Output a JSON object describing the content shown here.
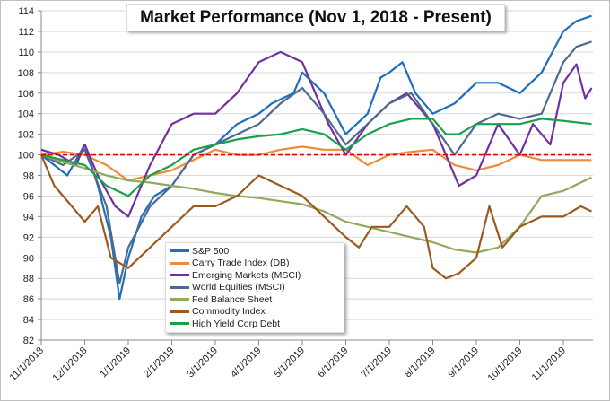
{
  "chart_data": {
    "type": "line",
    "title": "Market Performance (Nov 1, 2018 - Present)",
    "xlabel": "",
    "ylabel": "",
    "ylim": [
      82,
      114
    ],
    "yticks": [
      82,
      84,
      86,
      88,
      90,
      92,
      94,
      96,
      98,
      100,
      102,
      104,
      106,
      108,
      110,
      112,
      114
    ],
    "xtick_labels": [
      "11/1/2018",
      "12/1/2018",
      "1/1/2019",
      "2/1/2019",
      "3/1/2019",
      "4/1/2019",
      "5/1/2019",
      "6/1/2019",
      "7/1/2019",
      "8/1/2019",
      "9/1/2019",
      "10/1/2019",
      "11/1/2019"
    ],
    "x_units": "months since 11/1/2018",
    "reference_line": 100,
    "grid": true,
    "legend_position": "bottom-left",
    "series": [
      {
        "name": "S&P 500",
        "color": "#1f6fc0",
        "x": [
          0,
          0.3,
          0.6,
          1,
          1.3,
          1.6,
          1.8,
          2,
          2.3,
          2.6,
          3,
          3.5,
          4,
          4.5,
          5,
          5.3,
          5.8,
          6,
          6.5,
          7,
          7.5,
          7.8,
          8,
          8.3,
          8.6,
          9,
          9.5,
          10,
          10.5,
          11,
          11.5,
          12,
          12.3,
          12.65
        ],
        "y": [
          100,
          99,
          98,
          101,
          97,
          92,
          86,
          90,
          94,
          96,
          97,
          100,
          101,
          103,
          104,
          105,
          106,
          108,
          106,
          102,
          104,
          107.5,
          108,
          109,
          106,
          104,
          105,
          107,
          107,
          106,
          108,
          112,
          113,
          113.5
        ]
      },
      {
        "name": "Carry Trade Index (DB)",
        "color": "#f08a38",
        "x": [
          0,
          0.5,
          1,
          1.5,
          2,
          2.5,
          3,
          3.5,
          4,
          4.5,
          5,
          5.5,
          6,
          6.5,
          7,
          7.5,
          8,
          8.5,
          9,
          9.5,
          10,
          10.5,
          11,
          11.5,
          12,
          12.65
        ],
        "y": [
          100,
          100.3,
          100,
          99,
          97.5,
          98,
          98.5,
          99.5,
          100.5,
          100,
          100,
          100.5,
          100.8,
          100.5,
          100.5,
          99,
          100,
          100.3,
          100.5,
          99,
          98.5,
          99,
          100,
          99.5,
          99.5,
          99.5
        ]
      },
      {
        "name": "Emerging Markets (MSCI)",
        "color": "#7030a0",
        "x": [
          0,
          0.4,
          0.8,
          1,
          1.3,
          1.7,
          2,
          2.5,
          3,
          3.5,
          4,
          4.5,
          5,
          5.5,
          6,
          6.3,
          6.6,
          7,
          7.5,
          8,
          8.4,
          8.8,
          9,
          9.3,
          9.6,
          10,
          10.5,
          11,
          11.3,
          11.7,
          12,
          12.3,
          12.5,
          12.65
        ],
        "y": [
          100.5,
          100,
          99,
          101,
          98,
          95,
          94,
          99,
          103,
          104,
          104,
          106,
          109,
          110,
          109,
          106,
          103,
          100,
          103,
          105,
          106,
          104,
          103,
          100,
          97,
          98,
          103,
          100,
          103,
          101,
          107,
          108.8,
          105.5,
          106.5
        ]
      },
      {
        "name": "World Equities (MSCI)",
        "color": "#4e6a8e",
        "x": [
          0,
          0.5,
          1,
          1.5,
          1.8,
          2,
          2.5,
          3,
          3.5,
          4,
          4.5,
          5,
          5.5,
          6,
          6.5,
          7,
          7.5,
          8,
          8.5,
          9,
          9.5,
          10,
          10.5,
          11,
          11.5,
          12,
          12.3,
          12.65
        ],
        "y": [
          100,
          99,
          100.5,
          95,
          87.5,
          91,
          95,
          97,
          100,
          101,
          102,
          103,
          105,
          106.5,
          104,
          101,
          103,
          105,
          106,
          103,
          100,
          103,
          104,
          103.5,
          104,
          109,
          110.5,
          111
        ]
      },
      {
        "name": "Fed Balance Sheet",
        "color": "#92a85a",
        "x": [
          0,
          0.5,
          1,
          1.5,
          2,
          2.5,
          3,
          3.5,
          4,
          4.5,
          5,
          5.5,
          6,
          6.5,
          7,
          7.5,
          8,
          8.5,
          9,
          9.5,
          10,
          10.5,
          11,
          11.5,
          12,
          12.65
        ],
        "y": [
          100,
          99.3,
          98.7,
          98,
          97.5,
          97.3,
          97,
          96.7,
          96.3,
          96,
          95.8,
          95.5,
          95.2,
          94.5,
          93.5,
          93,
          92.5,
          92,
          91.5,
          90.8,
          90.5,
          91,
          93,
          96,
          96.5,
          97.8
        ]
      },
      {
        "name": "Commodity Index",
        "color": "#9c5a1e",
        "x": [
          0,
          0.3,
          0.5,
          1,
          1.3,
          1.6,
          2,
          2.5,
          3,
          3.5,
          4,
          4.5,
          5,
          5.5,
          6,
          6.5,
          7,
          7.3,
          7.6,
          8,
          8.4,
          8.8,
          9,
          9.3,
          9.6,
          10,
          10.3,
          10.6,
          11,
          11.5,
          12,
          12.4,
          12.65
        ],
        "y": [
          100,
          97,
          96,
          93.5,
          95,
          90,
          89,
          91,
          93,
          95,
          95,
          96,
          98,
          97,
          96,
          94,
          92,
          91,
          93,
          93,
          95,
          93,
          89,
          88,
          88.5,
          90,
          95,
          91,
          93,
          94,
          94,
          95,
          94.5
        ]
      },
      {
        "name": "High Yield Corp Debt",
        "color": "#1aa04a",
        "x": [
          0,
          0.5,
          1,
          1.5,
          2,
          2.5,
          3,
          3.5,
          4,
          4.5,
          5,
          5.5,
          6,
          6.5,
          7,
          7.5,
          8,
          8.5,
          9,
          9.3,
          9.6,
          10,
          10.5,
          11,
          11.5,
          12,
          12.65
        ],
        "y": [
          100,
          99.5,
          99,
          97,
          96,
          98,
          99,
          100.5,
          101,
          101.5,
          101.8,
          102,
          102.5,
          102,
          100.5,
          102,
          103,
          103.5,
          103.5,
          102,
          102,
          103,
          103,
          103,
          103.5,
          103.3,
          103
        ]
      }
    ]
  }
}
